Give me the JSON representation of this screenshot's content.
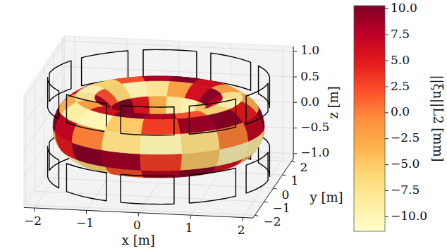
{
  "chart_data": {
    "type": "surface3d",
    "xlabel": "x [m]",
    "ylabel": "y [m]",
    "zlabel": "z [m]",
    "xlim": [
      -2.2,
      2.2
    ],
    "ylim": [
      -2.2,
      2.2
    ],
    "zlim": [
      -1.1,
      1.1
    ],
    "xticks": [
      {
        "value": -2,
        "label": "−2"
      },
      {
        "value": -1,
        "label": "−1"
      },
      0,
      1,
      2
    ],
    "yticks": [
      {
        "value": -2,
        "label": "−2"
      },
      {
        "value": -1,
        "label": "−1"
      },
      0,
      1,
      2
    ],
    "zticks": [
      {
        "value": -1,
        "label": "−1.0"
      },
      {
        "value": -0.5,
        "label": "−0.5"
      },
      {
        "value": 0,
        "label": "0.0"
      },
      0.5,
      {
        "value": 1,
        "label": "1.0"
      }
    ],
    "grid": true,
    "major_radius": 1.4,
    "minor_radius": 0.6,
    "phi": [
      0,
      22.5,
      45,
      67.5,
      90,
      112.5,
      135,
      157.5,
      180,
      202.5,
      225,
      247.5,
      270,
      292.5,
      315,
      337.5
    ],
    "theta": [
      0,
      36,
      72,
      108,
      144,
      180,
      216,
      252,
      288,
      324
    ],
    "values": [
      [
        10,
        7,
        0,
        -7,
        -10,
        -7,
        0,
        7,
        10,
        7,
        0,
        -7,
        -10,
        -7,
        0,
        7
      ],
      [
        -3,
        -9,
        -10,
        -5,
        3,
        9,
        10,
        5,
        -3,
        -9,
        -10,
        -5,
        3,
        9,
        10,
        5
      ],
      [
        -8,
        -2,
        6,
        10,
        8,
        2,
        -6,
        -10,
        -8,
        -2,
        6,
        10,
        8,
        2,
        -6,
        -10
      ],
      [
        8,
        10,
        6,
        -2,
        -8,
        -10,
        -6,
        2,
        8,
        10,
        6,
        -2,
        -8,
        -10,
        -6,
        2
      ],
      [
        3,
        -5,
        -10,
        -9,
        -3,
        5,
        10,
        9,
        3,
        -5,
        -10,
        -9,
        -3,
        5,
        10,
        9
      ],
      [
        -10,
        -7,
        0,
        7,
        10,
        7,
        0,
        -7,
        -10,
        -7,
        0,
        7,
        10,
        7,
        0,
        -7
      ],
      [
        3,
        9,
        10,
        5,
        -3,
        -9,
        -10,
        -5,
        3,
        9,
        10,
        5,
        -3,
        -9,
        -10,
        -5
      ],
      [
        8,
        2,
        -6,
        -10,
        -8,
        -2,
        6,
        10,
        8,
        2,
        -6,
        -10,
        -8,
        -2,
        6,
        10
      ],
      [
        -8,
        -10,
        -6,
        2,
        8,
        10,
        6,
        -2,
        -8,
        -10,
        -6,
        2,
        8,
        10,
        6,
        -2
      ],
      [
        -3,
        5,
        10,
        9,
        3,
        -5,
        -10,
        -9,
        -3,
        5,
        10,
        9,
        3,
        -5,
        -10,
        -9
      ]
    ],
    "colorbar": {
      "label": "||ξn||L2 [mm]",
      "lim": [
        -11.4,
        10.3
      ],
      "ticks": [
        {
          "value": -10,
          "label": "−10.0"
        },
        {
          "value": -7.5,
          "label": "−7.5"
        },
        {
          "value": -5,
          "label": "−5.0"
        },
        {
          "value": -2.5,
          "label": "−2.5"
        },
        {
          "value": 0,
          "label": "0.0"
        },
        2.5,
        {
          "value": 5,
          "label": "5.0"
        },
        7.5,
        {
          "value": 10,
          "label": "10.0"
        }
      ]
    }
  }
}
